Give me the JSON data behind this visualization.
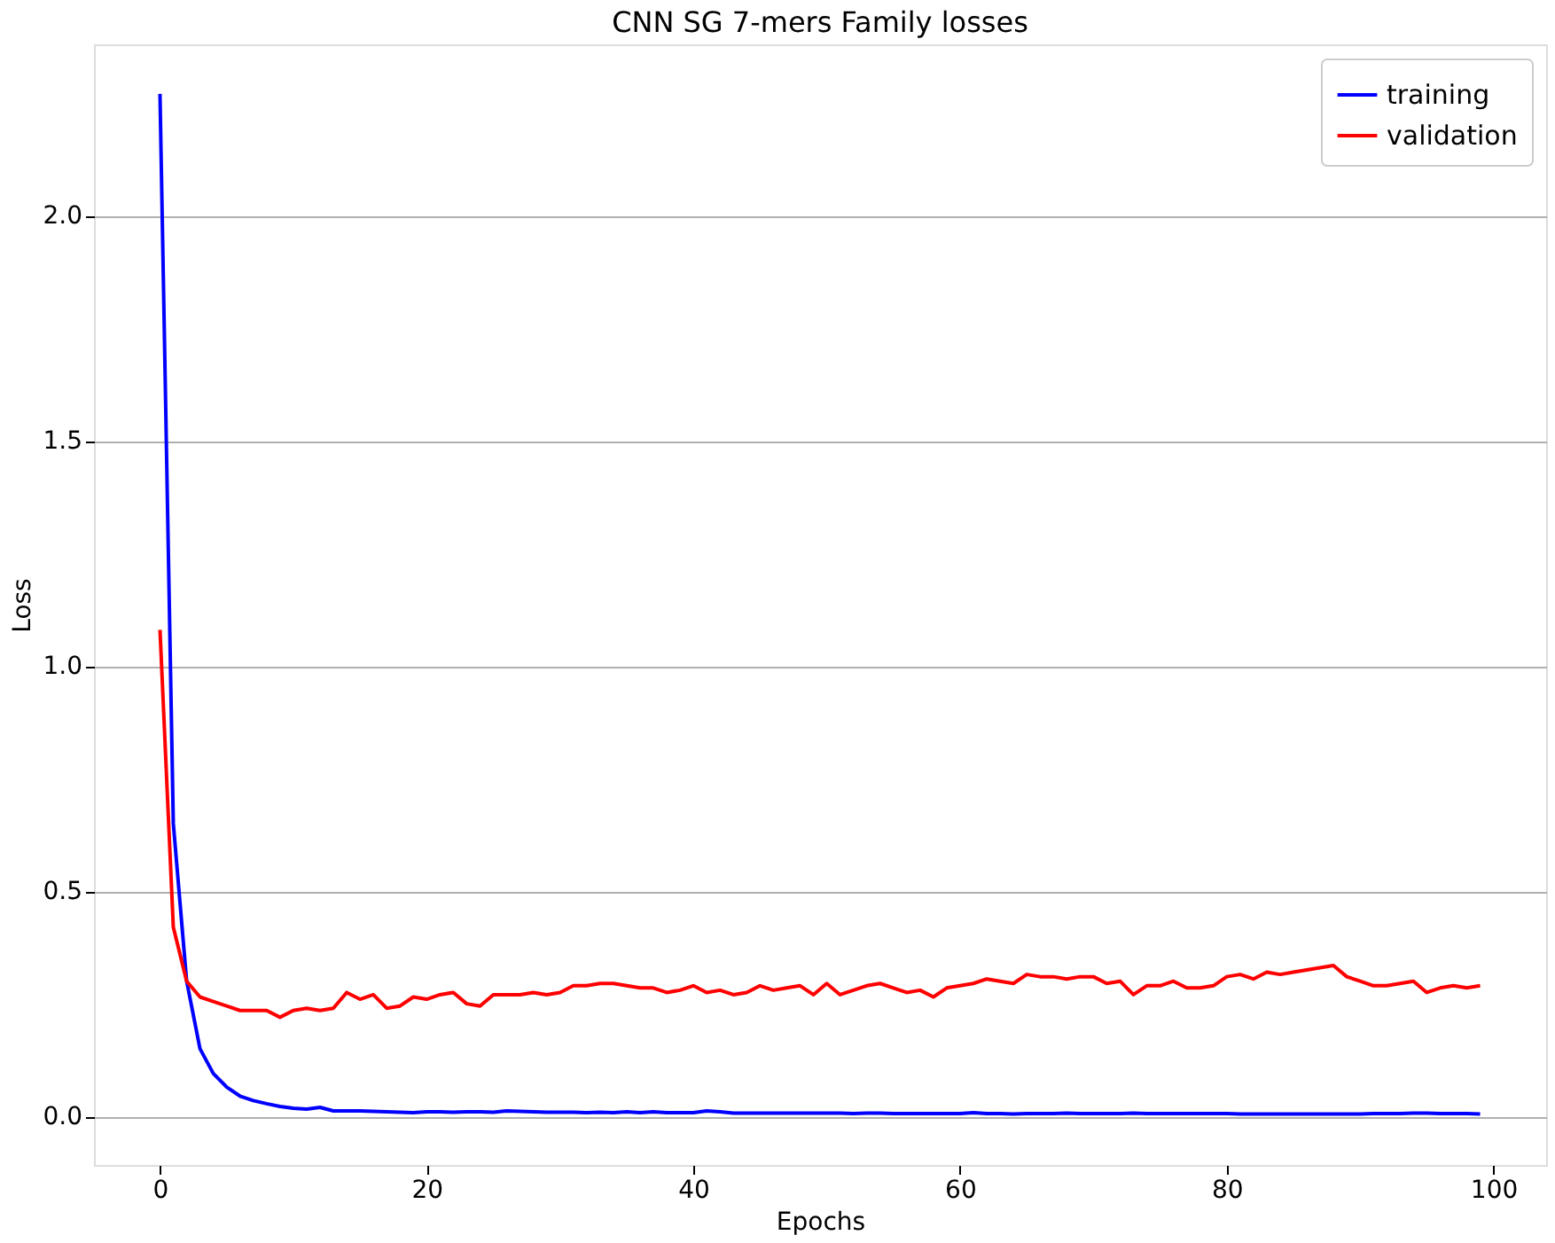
{
  "chart_data": {
    "type": "line",
    "title": "CNN SG 7-mers Family losses",
    "xlabel": "Epochs",
    "ylabel": "Loss",
    "x": [
      0,
      1,
      2,
      3,
      4,
      5,
      6,
      7,
      8,
      9,
      10,
      11,
      12,
      13,
      14,
      15,
      16,
      17,
      18,
      19,
      20,
      21,
      22,
      23,
      24,
      25,
      26,
      27,
      28,
      29,
      30,
      31,
      32,
      33,
      34,
      35,
      36,
      37,
      38,
      39,
      40,
      41,
      42,
      43,
      44,
      45,
      46,
      47,
      48,
      49,
      50,
      51,
      52,
      53,
      54,
      55,
      56,
      57,
      58,
      59,
      60,
      61,
      62,
      63,
      64,
      65,
      66,
      67,
      68,
      69,
      70,
      71,
      72,
      73,
      74,
      75,
      76,
      77,
      78,
      79,
      80,
      81,
      82,
      83,
      84,
      85,
      86,
      87,
      88,
      89,
      90,
      91,
      92,
      93,
      94,
      95,
      96,
      97,
      98,
      99
    ],
    "series": [
      {
        "name": "training",
        "color": "#0000ff",
        "values": [
          2.27,
          0.65,
          0.3,
          0.15,
          0.095,
          0.065,
          0.045,
          0.035,
          0.028,
          0.022,
          0.018,
          0.016,
          0.02,
          0.012,
          0.012,
          0.012,
          0.011,
          0.01,
          0.009,
          0.008,
          0.01,
          0.01,
          0.009,
          0.01,
          0.01,
          0.009,
          0.012,
          0.011,
          0.01,
          0.009,
          0.009,
          0.009,
          0.008,
          0.009,
          0.008,
          0.01,
          0.008,
          0.01,
          0.008,
          0.008,
          0.008,
          0.012,
          0.01,
          0.007,
          0.007,
          0.007,
          0.007,
          0.007,
          0.007,
          0.007,
          0.007,
          0.007,
          0.006,
          0.007,
          0.007,
          0.006,
          0.006,
          0.006,
          0.006,
          0.006,
          0.006,
          0.008,
          0.006,
          0.006,
          0.005,
          0.006,
          0.006,
          0.006,
          0.007,
          0.006,
          0.006,
          0.006,
          0.006,
          0.007,
          0.006,
          0.006,
          0.006,
          0.006,
          0.006,
          0.006,
          0.006,
          0.005,
          0.005,
          0.005,
          0.005,
          0.005,
          0.005,
          0.005,
          0.005,
          0.005,
          0.005,
          0.006,
          0.006,
          0.006,
          0.007,
          0.007,
          0.006,
          0.006,
          0.006,
          0.005
        ]
      },
      {
        "name": "validation",
        "color": "#ff0000",
        "values": [
          1.08,
          0.42,
          0.3,
          0.265,
          0.255,
          0.245,
          0.235,
          0.235,
          0.235,
          0.22,
          0.235,
          0.24,
          0.235,
          0.24,
          0.275,
          0.26,
          0.27,
          0.24,
          0.245,
          0.265,
          0.26,
          0.27,
          0.275,
          0.25,
          0.245,
          0.27,
          0.27,
          0.27,
          0.275,
          0.27,
          0.275,
          0.29,
          0.29,
          0.295,
          0.295,
          0.29,
          0.285,
          0.285,
          0.275,
          0.28,
          0.29,
          0.275,
          0.28,
          0.27,
          0.275,
          0.29,
          0.28,
          0.285,
          0.29,
          0.27,
          0.295,
          0.27,
          0.28,
          0.29,
          0.295,
          0.285,
          0.275,
          0.28,
          0.265,
          0.285,
          0.29,
          0.295,
          0.305,
          0.3,
          0.295,
          0.315,
          0.31,
          0.31,
          0.305,
          0.31,
          0.31,
          0.295,
          0.3,
          0.27,
          0.29,
          0.29,
          0.3,
          0.285,
          0.285,
          0.29,
          0.31,
          0.315,
          0.305,
          0.32,
          0.315,
          0.32,
          0.325,
          0.33,
          0.335,
          0.31,
          0.3,
          0.29,
          0.29,
          0.295,
          0.3,
          0.275,
          0.285,
          0.29,
          0.285,
          0.29
        ]
      }
    ],
    "xlim": [
      -4.95,
      103.95
    ],
    "ylim": [
      -0.108,
      2.38
    ],
    "xticks": [
      0,
      20,
      40,
      60,
      80,
      100
    ],
    "yticks": [
      {
        "value": 0,
        "label": "0.0"
      },
      {
        "value": 0.5,
        "label": "0.5"
      },
      {
        "value": 1,
        "label": "1.0"
      },
      {
        "value": 1.5,
        "label": "1.5"
      },
      {
        "value": 2,
        "label": "2.0"
      }
    ],
    "grid": "y",
    "legend": "top right",
    "line_style": "solid",
    "marker": "none"
  }
}
